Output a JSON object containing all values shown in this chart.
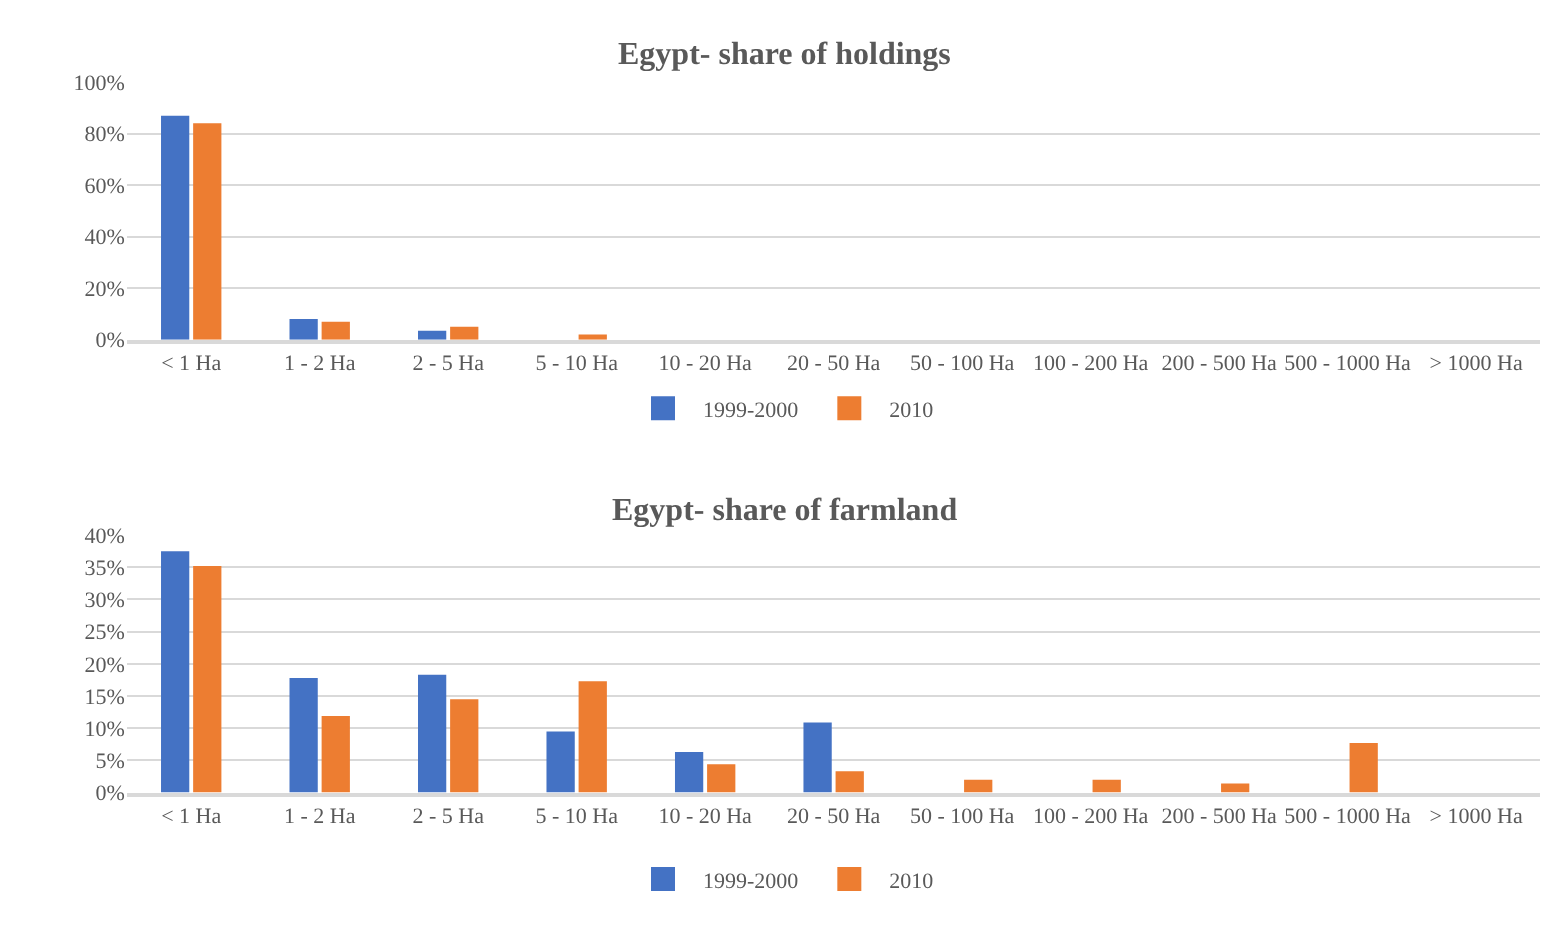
{
  "chart_data": [
    {
      "type": "bar",
      "title": "Egypt- share of holdings",
      "categories": [
        "< 1 Ha",
        "1 - 2 Ha",
        "2 - 5 Ha",
        "5 - 10 Ha",
        "10 - 20 Ha",
        "20 - 50 Ha",
        "50 - 100 Ha",
        "100 - 200 Ha",
        "200 - 500 Ha",
        "500 - 1000 Ha",
        "> 1000 Ha"
      ],
      "series": [
        {
          "name": "1999-2000",
          "color": "#4472c4",
          "values": [
            87,
            8,
            3.5,
            0,
            0,
            0,
            0,
            0,
            0,
            0,
            0
          ]
        },
        {
          "name": "2010",
          "color": "#ed7d31",
          "values": [
            84,
            7,
            5,
            2,
            0,
            0,
            0,
            0,
            0,
            0,
            0
          ]
        }
      ],
      "ylim": [
        0,
        100
      ],
      "yticks": [
        {
          "value": 0,
          "label": "0%"
        },
        {
          "value": 20,
          "label": "20%"
        },
        {
          "value": 40,
          "label": "40%"
        },
        {
          "value": 60,
          "label": "60%"
        },
        {
          "value": 80,
          "label": "80%"
        },
        {
          "value": 100,
          "label": "100%"
        }
      ],
      "grid": "y",
      "legend": "bottom"
    },
    {
      "type": "bar",
      "title": "Egypt- share of farmland",
      "categories": [
        "< 1 Ha",
        "1 - 2 Ha",
        "2 - 5 Ha",
        "5 - 10 Ha",
        "10 - 20 Ha",
        "20 - 50 Ha",
        "50 - 100 Ha",
        "100 - 200 Ha",
        "200 - 500 Ha",
        "500 - 1000 Ha",
        "> 1000 Ha"
      ],
      "series": [
        {
          "name": "1999-2000",
          "color": "#4472c4",
          "values": [
            37.5,
            17.8,
            18.3,
            9.5,
            6.3,
            10.9,
            0,
            0,
            0,
            0,
            0
          ]
        },
        {
          "name": "2010",
          "color": "#ed7d31",
          "values": [
            35.2,
            11.9,
            14.5,
            17.3,
            4.4,
            3.3,
            2.0,
            2.0,
            1.4,
            7.7,
            0
          ]
        }
      ],
      "ylim": [
        0,
        40
      ],
      "yticks": [
        {
          "value": 0,
          "label": "0%"
        },
        {
          "value": 5,
          "label": "5%"
        },
        {
          "value": 10,
          "label": "10%"
        },
        {
          "value": 15,
          "label": "15%"
        },
        {
          "value": 20,
          "label": "20%"
        },
        {
          "value": 25,
          "label": "25%"
        },
        {
          "value": 30,
          "label": "30%"
        },
        {
          "value": 35,
          "label": "35%"
        },
        {
          "value": 40,
          "label": "40%"
        }
      ],
      "grid": "y",
      "legend": "bottom"
    }
  ]
}
